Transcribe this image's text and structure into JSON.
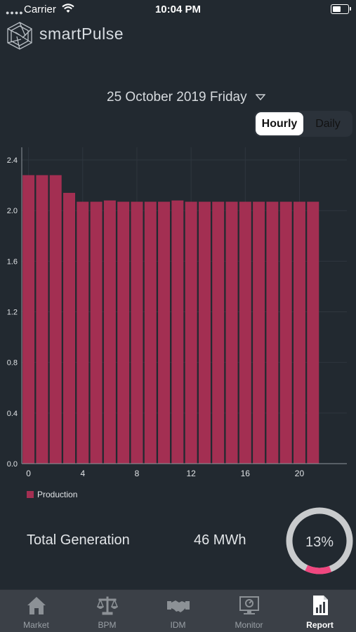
{
  "status_bar": {
    "carrier": "Carrier",
    "time": "10:04 PM"
  },
  "header": {
    "app_name": "smartPulse"
  },
  "date_selector": {
    "date_label": "25 October 2019 Friday"
  },
  "segment": {
    "hourly_label": "Hourly",
    "daily_label": "Daily",
    "selected": "Hourly"
  },
  "colors": {
    "bar": "#a32f52",
    "ring_track": "#c9cbcd",
    "ring_progress": "#f0477f",
    "background": "#222930",
    "tab_bar": "#3b4047"
  },
  "chart_data": {
    "type": "bar",
    "x": [
      0,
      1,
      2,
      3,
      4,
      5,
      6,
      7,
      8,
      9,
      10,
      11,
      12,
      13,
      14,
      15,
      16,
      17,
      18,
      19,
      20,
      21
    ],
    "x_ticks": [
      "0",
      "4",
      "8",
      "12",
      "16",
      "20"
    ],
    "x_tick_values": [
      0,
      4,
      8,
      12,
      16,
      20
    ],
    "y_ticks": [
      "0.0",
      "0.4",
      "0.8",
      "1.2",
      "1.6",
      "2.0",
      "2.4"
    ],
    "y_tick_values": [
      0,
      0.4,
      0.8,
      1.2,
      1.6,
      2.0,
      2.4
    ],
    "series": [
      {
        "name": "Production",
        "values": [
          2.28,
          2.28,
          2.28,
          2.14,
          2.07,
          2.07,
          2.08,
          2.07,
          2.07,
          2.07,
          2.07,
          2.08,
          2.07,
          2.07,
          2.07,
          2.07,
          2.07,
          2.07,
          2.07,
          2.07,
          2.07,
          2.07
        ]
      }
    ],
    "ylim": [
      0,
      2.5
    ],
    "xlim": [
      -0.5,
      23.5
    ],
    "grid": true,
    "legend_position": "bottom-left"
  },
  "legend": {
    "label": "Production"
  },
  "summary": {
    "total_label": "Total Generation",
    "total_value": "46 MWh",
    "percent_label": "13%",
    "percent_value": 13
  },
  "tabs": [
    {
      "label": "Market",
      "icon": "home-icon",
      "active": false
    },
    {
      "label": "BPM",
      "icon": "scales-icon",
      "active": false
    },
    {
      "label": "IDM",
      "icon": "handshake-icon",
      "active": false
    },
    {
      "label": "Monitor",
      "icon": "monitor-icon",
      "active": false
    },
    {
      "label": "Report",
      "icon": "report-chart-icon",
      "active": true
    }
  ]
}
